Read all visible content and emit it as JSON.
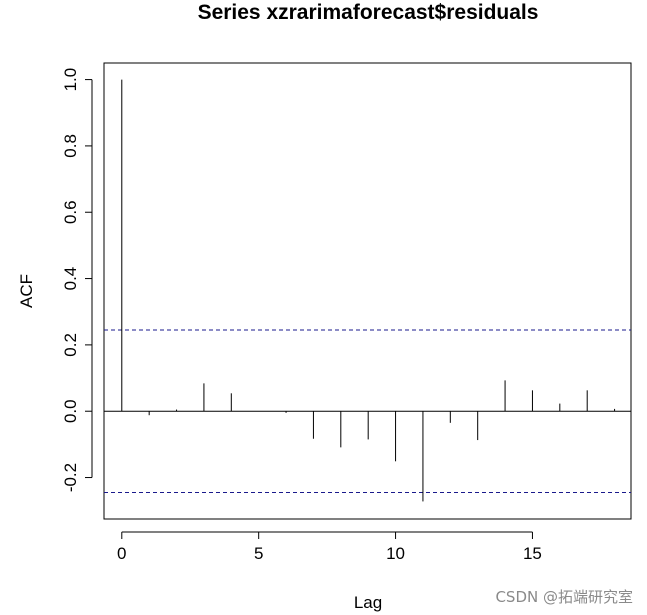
{
  "chart_data": {
    "type": "bar",
    "title": "Series  xzrarimaforecast$residuals",
    "xlabel": "Lag",
    "ylabel": "ACF",
    "x": [
      0,
      1,
      2,
      3,
      4,
      5,
      6,
      7,
      8,
      9,
      10,
      11,
      12,
      13,
      14,
      15,
      16,
      17,
      18
    ],
    "values": [
      1.0,
      -0.012,
      0.005,
      0.084,
      0.054,
      0.0,
      -0.005,
      -0.083,
      -0.109,
      -0.085,
      -0.151,
      -0.272,
      -0.035,
      -0.087,
      0.093,
      0.063,
      0.023,
      0.063,
      0.007
    ],
    "xlim": [
      -0.65,
      18.6
    ],
    "ylim": [
      -0.325,
      1.05
    ],
    "xticks": [
      0,
      5,
      10,
      15
    ],
    "xtick_labels": [
      "0",
      "5",
      "10",
      "15"
    ],
    "yticks": [
      -0.2,
      0.0,
      0.2,
      0.4,
      0.6,
      0.8,
      1.0
    ],
    "ytick_labels": [
      "-0.2",
      "0.0",
      "0.2",
      "0.4",
      "0.6",
      "0.8",
      "1.0"
    ],
    "confidence_bound": 0.245,
    "grid": false,
    "colors": {
      "lines": "#000000",
      "bounds": "#1a1a8c"
    }
  },
  "watermark": "CSDN @拓端研究室"
}
